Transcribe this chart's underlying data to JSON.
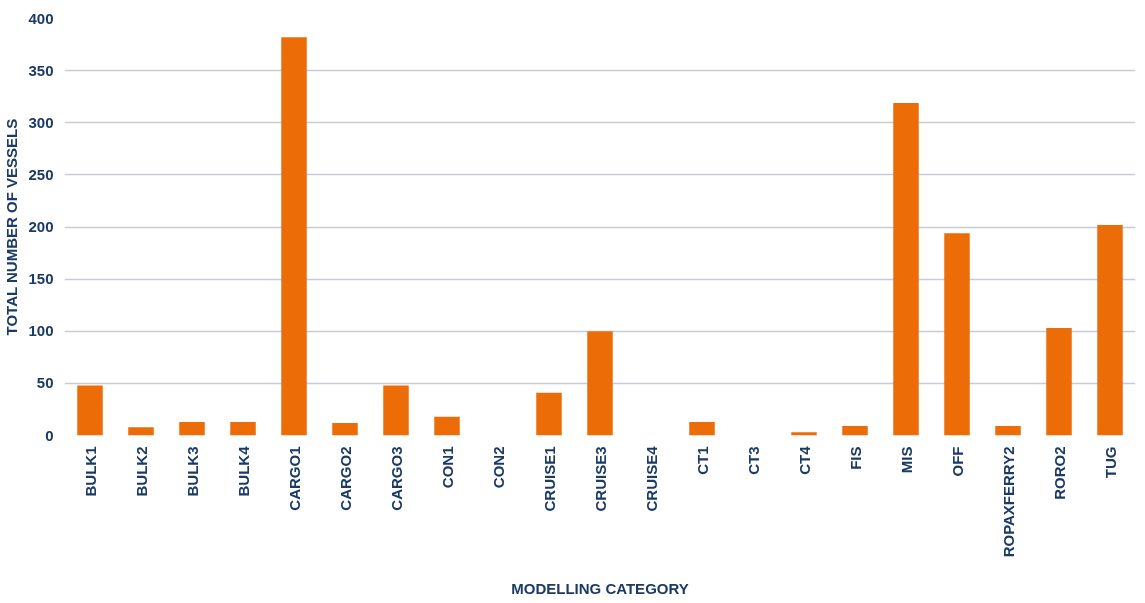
{
  "chart_data": {
    "type": "bar",
    "xlabel": "MODELLING CATEGORY",
    "ylabel": "TOTAL NUMBER OF VESSELS",
    "categories": [
      "BULK1",
      "BULK2",
      "BULK3",
      "BULK4",
      "CARGO1",
      "CARGO2",
      "CARGO3",
      "CON1",
      "CON2",
      "CRUISE1",
      "CRUISE3",
      "CRUISE4",
      "CT1",
      "CT3",
      "CT4",
      "FIS",
      "MIS",
      "OFF",
      "ROPAXFERRY2",
      "RORO2",
      "TUG"
    ],
    "values": [
      48,
      8,
      13,
      13,
      382,
      12,
      48,
      18,
      0,
      41,
      100,
      0,
      13,
      0,
      3,
      9,
      319,
      194,
      9,
      103,
      202
    ],
    "color": "#ec6c08",
    "ylim": [
      0,
      400
    ],
    "yticks": [
      0,
      50,
      100,
      150,
      200,
      250,
      300,
      350,
      400
    ],
    "grid": "y"
  }
}
